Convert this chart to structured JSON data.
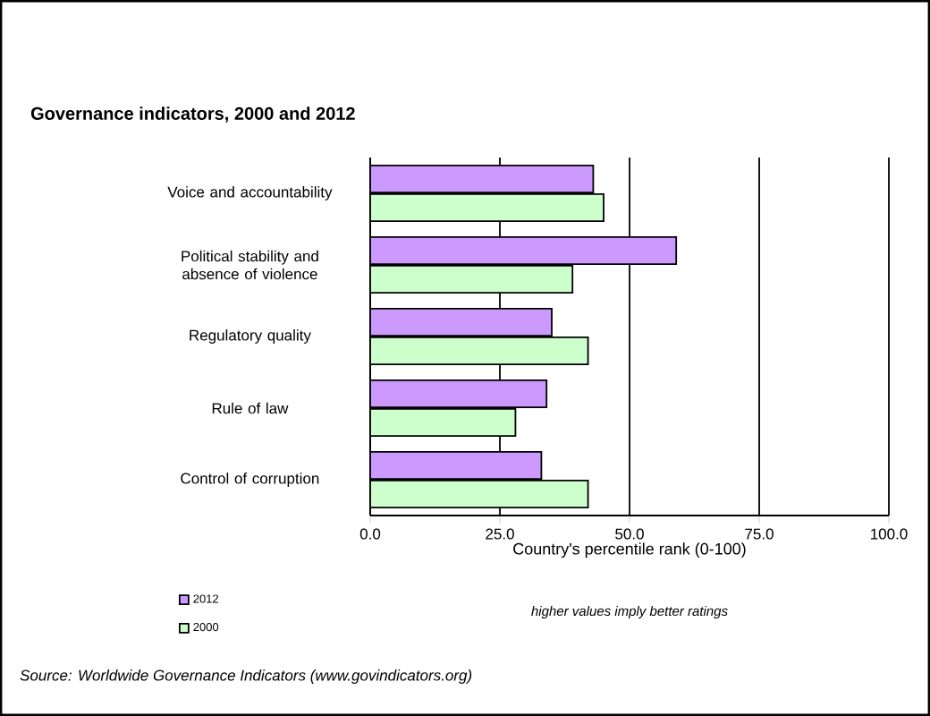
{
  "chart_data": {
    "type": "bar",
    "orientation": "horizontal",
    "title": "Governance indicators, 2000 and 2012",
    "categories": [
      "Voice and accountability",
      "Political stability and absence of violence",
      "Regulatory quality",
      "Rule of law",
      "Control of corruption"
    ],
    "series": [
      {
        "name": "2012",
        "color": "#cc99ff",
        "values": [
          43,
          59,
          35,
          34,
          33
        ]
      },
      {
        "name": "2000",
        "color": "#ccffcc",
        "values": [
          45,
          39,
          42,
          28,
          42
        ]
      }
    ],
    "xlim": [
      0,
      100
    ],
    "xticks": [
      {
        "value": 0,
        "label": "0.0"
      },
      {
        "value": 25,
        "label": "25.0"
      },
      {
        "value": 50,
        "label": "50.0"
      },
      {
        "value": 75,
        "label": "75.0"
      },
      {
        "value": 100,
        "label": "100.0"
      }
    ],
    "xlabel": "Country's percentile rank (0-100)",
    "annotations": [
      "higher values imply better ratings",
      "Source: Worldwide Governance Indicators (www.govindicators.org)"
    ],
    "grid": "x",
    "legend": "bottom left"
  }
}
